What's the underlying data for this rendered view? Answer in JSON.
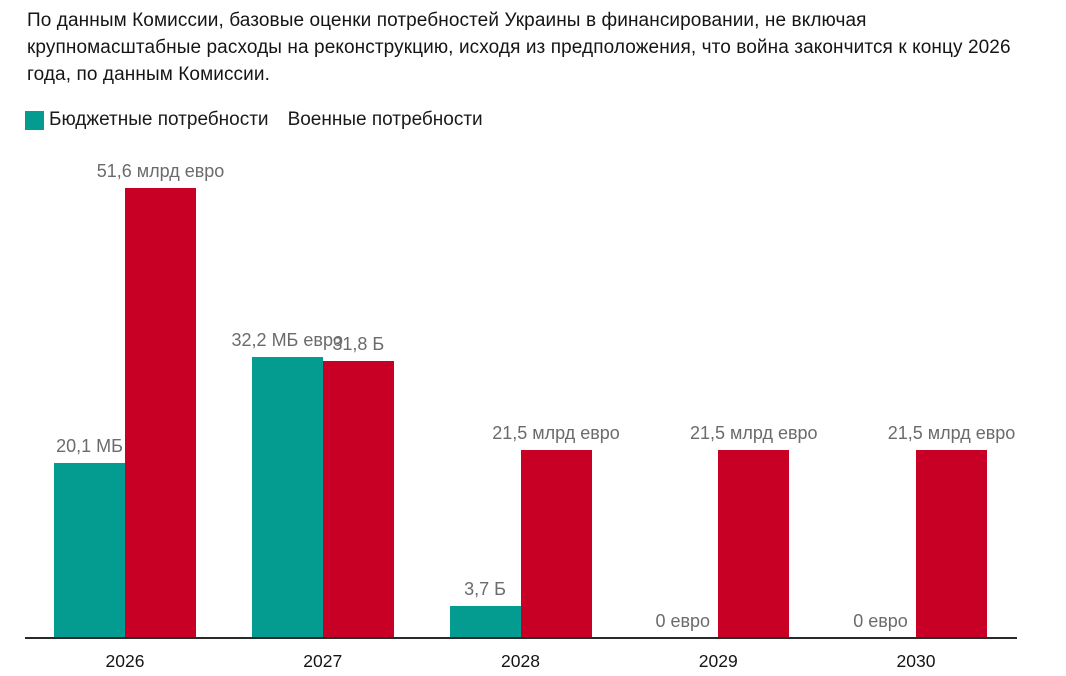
{
  "chart_data": {
    "type": "bar",
    "title": "По данным Комиссии, базовые оценки потребностей Украины в финансировании, не включая крупномасштабные расходы на реконструкцию, исходя из предположения, что война закончится к концу 2026 года, по данным Комиссии.",
    "categories": [
      "2026",
      "2027",
      "2028",
      "2029",
      "2030"
    ],
    "series": [
      {
        "name": "Бюджетные потребности",
        "color": "#049c90",
        "values": [
          20.1,
          32.2,
          3.7,
          0,
          0
        ],
        "labels": [
          "20,1 МБ",
          "32,2 МБ евро",
          "3,7 Б",
          "0 евро",
          "0 евро"
        ]
      },
      {
        "name": "Военные потребности",
        "color": "#c80026",
        "values": [
          51.6,
          31.8,
          21.5,
          21.5,
          21.5
        ],
        "labels": [
          "51,6 млрд евро",
          "31,8 Б",
          "21,5 млрд евро",
          "21,5 млрд евро",
          "21,5 млрд евро"
        ]
      }
    ],
    "unit": "млрд евро",
    "ylim": [
      0,
      51.6
    ],
    "grid": false,
    "legend_position": "top-left",
    "value_label_color": "#6b6b6b",
    "axis_color": "#2a2a2a"
  }
}
